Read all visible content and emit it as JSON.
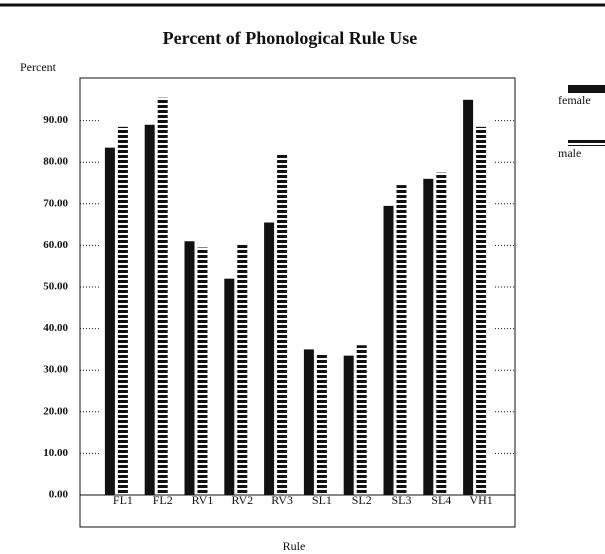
{
  "chart_data": {
    "type": "bar",
    "title": "Percent of Phonological Rule Use",
    "y_label": "Percent",
    "x_label": "Rule",
    "categories": [
      "FL1",
      "FL2",
      "RV1",
      "RV2",
      "RV3",
      "SL1",
      "SL2",
      "SL3",
      "SL4",
      "VH1"
    ],
    "series": [
      {
        "name": "female",
        "color": "#111111",
        "values": [
          83.5,
          89,
          61,
          52,
          65.5,
          35,
          33.5,
          69.5,
          76,
          95
        ]
      },
      {
        "name": "male",
        "color": "#111111",
        "pattern": "dashed",
        "values": [
          88.5,
          95.5,
          59.5,
          60.5,
          82,
          34,
          36,
          74.5,
          77.5,
          88.5
        ]
      }
    ],
    "ylim": [
      0,
      100
    ],
    "yticks": [
      {
        "value": 0,
        "label": "0.00"
      },
      {
        "value": 10,
        "label": "10.00"
      },
      {
        "value": 20,
        "label": "20.00"
      },
      {
        "value": 30,
        "label": "30.00"
      },
      {
        "value": 40,
        "label": "40.00"
      },
      {
        "value": 50,
        "label": "50.00"
      },
      {
        "value": 60,
        "label": "60.00"
      },
      {
        "value": 70,
        "label": "70.00"
      },
      {
        "value": 80,
        "label": "80.00"
      },
      {
        "value": 90,
        "label": "90.00"
      }
    ],
    "grid": true,
    "legend": "right"
  }
}
